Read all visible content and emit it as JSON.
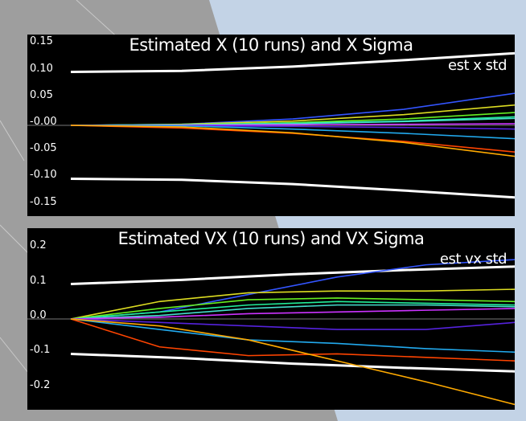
{
  "colors": {
    "background": "#b9c9dc",
    "panel": "#000000",
    "sigma": "#ffffff"
  },
  "chart_data": [
    {
      "type": "line",
      "title": "Estimated X (10 runs) and X Sigma",
      "legend": "est x std",
      "legend_position": "top-right",
      "yticks": [
        "0.15",
        "0.10",
        "0.05",
        "-0.00",
        "-0.05",
        "-0.10",
        "-0.15"
      ],
      "ylim": [
        -0.17,
        0.17
      ],
      "xlim": [
        0,
        1
      ],
      "sigma": {
        "name": "est x std",
        "color": "#ffffff",
        "x": [
          0,
          0.25,
          0.5,
          0.75,
          1.0
        ],
        "upper": [
          0.1,
          0.102,
          0.11,
          0.122,
          0.135
        ],
        "lower": [
          -0.1,
          -0.102,
          -0.11,
          -0.122,
          -0.135
        ]
      },
      "series": [
        {
          "color": "#3355ff",
          "x": [
            0,
            0.25,
            0.5,
            0.75,
            1.0
          ],
          "values": [
            0,
            0.002,
            0.012,
            0.03,
            0.06
          ]
        },
        {
          "color": "#dddd22",
          "x": [
            0,
            0.25,
            0.5,
            0.75,
            1.0
          ],
          "values": [
            0,
            0.002,
            0.008,
            0.02,
            0.038
          ]
        },
        {
          "color": "#66ee22",
          "x": [
            0,
            0.25,
            0.5,
            0.75,
            1.0
          ],
          "values": [
            0,
            0.001,
            0.005,
            0.012,
            0.024
          ]
        },
        {
          "color": "#22ee99",
          "x": [
            0,
            0.25,
            0.5,
            0.75,
            1.0
          ],
          "values": [
            0,
            0.001,
            0.004,
            0.008,
            0.016
          ]
        },
        {
          "color": "#44ddcc",
          "x": [
            0,
            0.25,
            0.5,
            0.75,
            1.0
          ],
          "values": [
            0,
            0.001,
            0.003,
            0.007,
            0.013
          ]
        },
        {
          "color": "#cc33ff",
          "x": [
            0,
            0.25,
            0.5,
            0.75,
            1.0
          ],
          "values": [
            0,
            0.0,
            0.001,
            0.002,
            0.003
          ]
        },
        {
          "color": "#5522dd",
          "x": [
            0,
            0.25,
            0.5,
            0.75,
            1.0
          ],
          "values": [
            0,
            -0.001,
            -0.002,
            -0.004,
            -0.007
          ]
        },
        {
          "color": "#22aaee",
          "x": [
            0,
            0.25,
            0.5,
            0.75,
            1.0
          ],
          "values": [
            0,
            -0.001,
            -0.007,
            -0.015,
            -0.025
          ]
        },
        {
          "color": "#ff4400",
          "x": [
            0,
            0.25,
            0.5,
            0.75,
            1.0
          ],
          "values": [
            0,
            -0.005,
            -0.015,
            -0.03,
            -0.05
          ]
        },
        {
          "color": "#ffaa00",
          "x": [
            0,
            0.25,
            0.5,
            0.75,
            1.0
          ],
          "values": [
            0,
            -0.003,
            -0.014,
            -0.032,
            -0.058
          ]
        }
      ]
    },
    {
      "type": "line",
      "title": "Estimated VX (10 runs) and VX Sigma",
      "legend": "est vx std",
      "legend_position": "top-right",
      "yticks": [
        "0.2",
        "0.1",
        "0.0",
        "-0.1",
        "-0.2"
      ],
      "ylim": [
        -0.26,
        0.26
      ],
      "xlim": [
        0,
        1
      ],
      "sigma": {
        "name": "est vx std",
        "color": "#ffffff",
        "x": [
          0,
          0.25,
          0.5,
          0.75,
          1.0
        ],
        "upper": [
          0.1,
          0.112,
          0.128,
          0.14,
          0.15
        ],
        "lower": [
          -0.1,
          -0.112,
          -0.128,
          -0.14,
          -0.15
        ]
      },
      "series": [
        {
          "color": "#3355ff",
          "x": [
            0,
            0.2,
            0.4,
            0.6,
            0.8,
            1.0
          ],
          "values": [
            0,
            0.02,
            0.07,
            0.12,
            0.155,
            0.17
          ]
        },
        {
          "color": "#dddd22",
          "x": [
            0,
            0.2,
            0.4,
            0.6,
            0.8,
            1.0
          ],
          "values": [
            0,
            0.05,
            0.075,
            0.08,
            0.08,
            0.085
          ]
        },
        {
          "color": "#66ee22",
          "x": [
            0,
            0.2,
            0.4,
            0.6,
            0.8,
            1.0
          ],
          "values": [
            0,
            0.03,
            0.055,
            0.06,
            0.055,
            0.05
          ]
        },
        {
          "color": "#22ee99",
          "x": [
            0,
            0.2,
            0.4,
            0.6,
            0.8,
            1.0
          ],
          "values": [
            0,
            0.02,
            0.04,
            0.05,
            0.045,
            0.04
          ]
        },
        {
          "color": "#44ddcc",
          "x": [
            0,
            0.2,
            0.4,
            0.6,
            0.8,
            1.0
          ],
          "values": [
            0,
            0.01,
            0.03,
            0.04,
            0.04,
            0.035
          ]
        },
        {
          "color": "#cc33ff",
          "x": [
            0,
            0.2,
            0.4,
            0.6,
            0.8,
            1.0
          ],
          "values": [
            0,
            0.005,
            0.015,
            0.02,
            0.025,
            0.03
          ]
        },
        {
          "color": "#5522dd",
          "x": [
            0,
            0.2,
            0.4,
            0.6,
            0.8,
            1.0
          ],
          "values": [
            0,
            -0.01,
            -0.02,
            -0.03,
            -0.03,
            -0.01
          ]
        },
        {
          "color": "#22aaee",
          "x": [
            0,
            0.2,
            0.4,
            0.6,
            0.8,
            1.0
          ],
          "values": [
            0,
            -0.03,
            -0.06,
            -0.07,
            -0.085,
            -0.095
          ]
        },
        {
          "color": "#ff4400",
          "x": [
            0,
            0.2,
            0.4,
            0.6,
            0.8,
            1.0
          ],
          "values": [
            0,
            -0.08,
            -0.105,
            -0.1,
            -0.11,
            -0.12
          ]
        },
        {
          "color": "#ffaa00",
          "x": [
            0,
            0.2,
            0.4,
            0.6,
            0.8,
            1.0
          ],
          "values": [
            0,
            -0.02,
            -0.06,
            -0.12,
            -0.18,
            -0.245
          ]
        }
      ]
    }
  ]
}
